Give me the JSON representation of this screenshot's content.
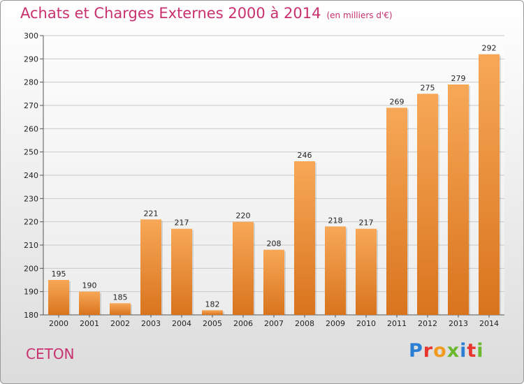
{
  "header": {
    "title": "Achats et Charges Externes 2000 à 2014",
    "unit": "(en milliers d'€)"
  },
  "footer": {
    "commune": "CETON",
    "brand": "Proxiti",
    "brand_colors": [
      "#2a7fd4",
      "#e8352e",
      "#f29a1f",
      "#6bb82f",
      "#2a7fd4",
      "#e8352e",
      "#6bb82f"
    ]
  },
  "colors": {
    "title": "#c8306e",
    "bar_light": "#f7a857",
    "bar_dark": "#d9741d"
  },
  "chart_data": {
    "type": "bar",
    "title": "Achats et Charges Externes 2000 à 2014",
    "subtitle": "(en milliers d'€)",
    "categories": [
      "2000",
      "2001",
      "2002",
      "2003",
      "2004",
      "2005",
      "2006",
      "2007",
      "2008",
      "2009",
      "2010",
      "2011",
      "2012",
      "2013",
      "2014"
    ],
    "values": [
      195,
      190,
      185,
      221,
      217,
      182,
      220,
      208,
      246,
      218,
      217,
      269,
      275,
      279,
      292
    ],
    "ylim": [
      180,
      300
    ],
    "yticks": [
      180,
      190,
      200,
      210,
      220,
      230,
      240,
      250,
      260,
      270,
      280,
      290,
      300
    ],
    "grid": true,
    "xlabel": "",
    "ylabel": ""
  }
}
